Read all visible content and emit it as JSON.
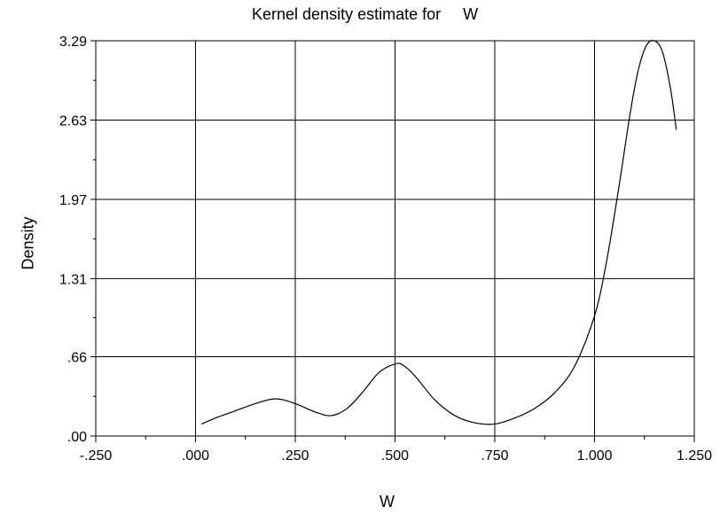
{
  "chart_data": {
    "type": "line",
    "title_prefix": "Kernel density estimate for",
    "title_var": "W",
    "xlabel": "W",
    "ylabel": "Density",
    "xlim": [
      -0.25,
      1.25
    ],
    "ylim": [
      0.0,
      3.29
    ],
    "x_ticks": [
      -0.25,
      0.0,
      0.25,
      0.5,
      0.75,
      1.0,
      1.25
    ],
    "x_tick_labels": [
      "-.250",
      ".000",
      ".250",
      ".500",
      ".750",
      "1.000",
      "1.250"
    ],
    "y_ticks": [
      0.0,
      0.66,
      1.31,
      1.97,
      2.63,
      3.29
    ],
    "y_tick_labels": [
      ".00",
      ".66",
      "1.31",
      "1.97",
      "2.63",
      "3.29"
    ],
    "grid": true,
    "series": [
      {
        "x": [
          0.015,
          0.05,
          0.1,
          0.15,
          0.2,
          0.25,
          0.3,
          0.34,
          0.38,
          0.42,
          0.46,
          0.5,
          0.52,
          0.55,
          0.6,
          0.65,
          0.7,
          0.75,
          0.8,
          0.85,
          0.9,
          0.95,
          1.0,
          1.03,
          1.06,
          1.09,
          1.11,
          1.13,
          1.15,
          1.17,
          1.19,
          1.205
        ],
        "y": [
          0.1,
          0.15,
          0.21,
          0.27,
          0.31,
          0.27,
          0.2,
          0.17,
          0.23,
          0.37,
          0.53,
          0.6,
          0.59,
          0.5,
          0.3,
          0.17,
          0.11,
          0.1,
          0.15,
          0.23,
          0.36,
          0.58,
          1.0,
          1.45,
          2.05,
          2.7,
          3.05,
          3.25,
          3.29,
          3.2,
          2.9,
          2.55
        ]
      }
    ]
  }
}
